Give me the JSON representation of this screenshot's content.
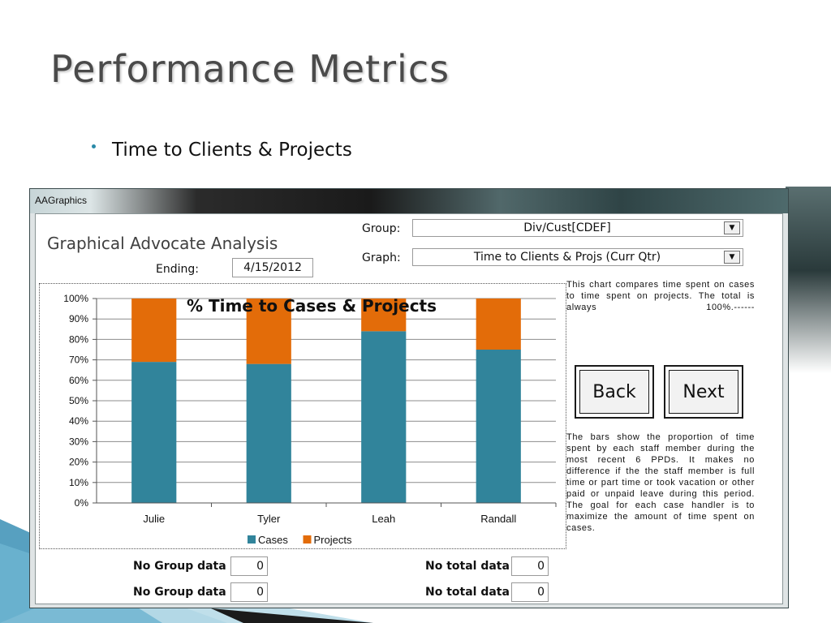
{
  "slide": {
    "title": "Performance Metrics",
    "bullet": "Time to Clients & Projects"
  },
  "window": {
    "title": "AAGraphics",
    "app_title": "Graphical Advocate Analysis",
    "ending_label": "Ending:",
    "ending_value": "4/15/2012",
    "group_label": "Group:",
    "group_value": "Div/Cust[CDEF]",
    "graph_label": "Graph:",
    "graph_value": "Time to Clients & Projs (Curr Qtr)",
    "description_top": "This chart compares time spent on cases to time spent on projects. The total is always 100%.------",
    "description_bottom": "The bars show the proportion of time spent by each staff member during the most recent 6 PPDs. It makes no difference if the the staff member is full time or part time or took vacation or other paid or unpaid leave during this period. The goal for each case handler is to maximize the amount of time spent on cases.",
    "back_label": "Back",
    "next_label": "Next",
    "no_group_label_1": "No Group data",
    "no_group_value_1": "0",
    "no_group_label_2": "No Group data",
    "no_group_value_2": "0",
    "no_total_label_1": "No total data",
    "no_total_value_1": "0",
    "no_total_label_2": "No total data",
    "no_total_value_2": "0"
  },
  "colors": {
    "cases": "#31849b",
    "projects": "#e36c09",
    "window_border": "#3a4a4c"
  },
  "chart_data": {
    "type": "bar",
    "stacked": true,
    "title": "% Time to Cases & Projects",
    "categories": [
      "Julie",
      "Tyler",
      "Leah",
      "Randall"
    ],
    "series": [
      {
        "name": "Cases",
        "values": [
          69,
          68,
          84,
          75
        ]
      },
      {
        "name": "Projects",
        "values": [
          31,
          32,
          16,
          25
        ]
      }
    ],
    "y_ticks": [
      "0%",
      "10%",
      "20%",
      "30%",
      "40%",
      "50%",
      "60%",
      "70%",
      "80%",
      "90%",
      "100%"
    ],
    "ylim": [
      0,
      100
    ],
    "grid": true,
    "legend": "bottom"
  }
}
